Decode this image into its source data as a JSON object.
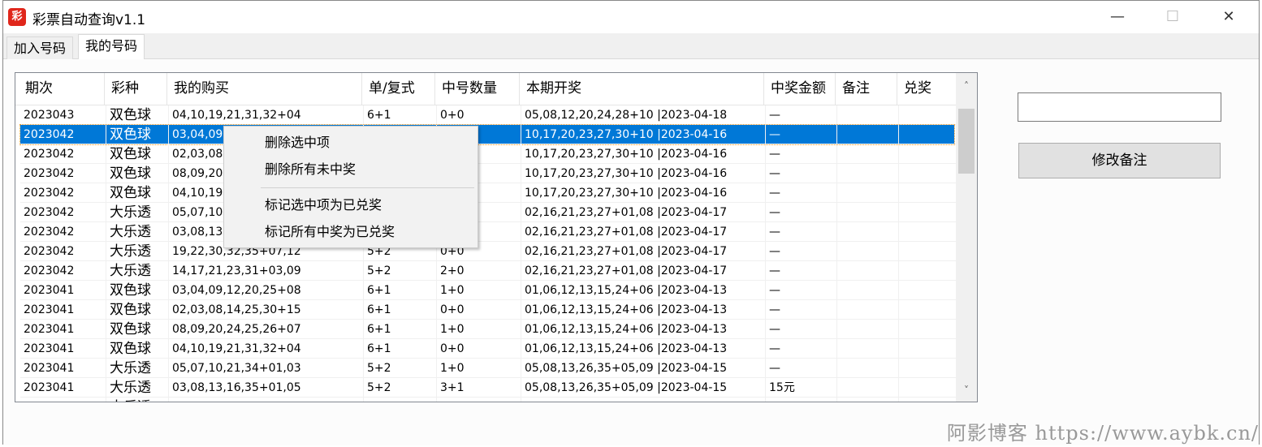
{
  "window": {
    "title": "彩票自动查询v1.1",
    "icon_text": "彩",
    "minimize": "—",
    "maximize": "☐",
    "close": "✕"
  },
  "tabs": [
    {
      "label": "加入号码"
    },
    {
      "label": "我的号码"
    }
  ],
  "table": {
    "columns": [
      "期次",
      "彩种",
      "我的购买",
      "单/复式",
      "中号数量",
      "本期开奖",
      "中奖金额",
      "备注",
      "兑奖"
    ],
    "rows": [
      [
        "2023043",
        "双色球",
        "04,10,19,21,31,32+04",
        "6+1",
        "0+0",
        "05,08,12,20,24,28+10 |2023-04-18",
        "—",
        "",
        ""
      ],
      [
        "2023042",
        "双色球",
        "03,04,09",
        "",
        "",
        "10,17,20,23,27,30+10 |2023-04-16",
        "—",
        "",
        ""
      ],
      [
        "2023042",
        "双色球",
        "02,03,08",
        "",
        "",
        "10,17,20,23,27,30+10 |2023-04-16",
        "—",
        "",
        ""
      ],
      [
        "2023042",
        "双色球",
        "08,09,20",
        "",
        "",
        "10,17,20,23,27,30+10 |2023-04-16",
        "—",
        "",
        ""
      ],
      [
        "2023042",
        "双色球",
        "04,10,19",
        "",
        "",
        "10,17,20,23,27,30+10 |2023-04-16",
        "—",
        "",
        ""
      ],
      [
        "2023042",
        "大乐透",
        "05,07,10",
        "",
        "",
        "02,16,21,23,27+01,08 |2023-04-17",
        "—",
        "",
        ""
      ],
      [
        "2023042",
        "大乐透",
        "03,08,13",
        "",
        "",
        "02,16,21,23,27+01,08 |2023-04-17",
        "—",
        "",
        ""
      ],
      [
        "2023042",
        "大乐透",
        "19,22,30,32,35+07,12",
        "5+2",
        "0+0",
        "02,16,21,23,27+01,08 |2023-04-17",
        "—",
        "",
        ""
      ],
      [
        "2023042",
        "大乐透",
        "14,17,21,23,31+03,09",
        "5+2",
        "2+0",
        "02,16,21,23,27+01,08 |2023-04-17",
        "—",
        "",
        ""
      ],
      [
        "2023041",
        "双色球",
        "03,04,09,12,20,25+08",
        "6+1",
        "1+0",
        "01,06,12,13,15,24+06 |2023-04-13",
        "—",
        "",
        ""
      ],
      [
        "2023041",
        "双色球",
        "02,03,08,14,25,30+15",
        "6+1",
        "0+0",
        "01,06,12,13,15,24+06 |2023-04-13",
        "—",
        "",
        ""
      ],
      [
        "2023041",
        "双色球",
        "08,09,20,24,25,26+07",
        "6+1",
        "1+0",
        "01,06,12,13,15,24+06 |2023-04-13",
        "—",
        "",
        ""
      ],
      [
        "2023041",
        "双色球",
        "04,10,19,21,31,32+04",
        "6+1",
        "0+0",
        "01,06,12,13,15,24+06 |2023-04-13",
        "—",
        "",
        ""
      ],
      [
        "2023041",
        "大乐透",
        "05,07,10,21,34+01,03",
        "5+2",
        "1+0",
        "05,08,13,26,35+05,09 |2023-04-15",
        "—",
        "",
        ""
      ],
      [
        "2023041",
        "大乐透",
        "03,08,13,16,35+01,05",
        "5+2",
        "3+1",
        "05,08,13,26,35+05,09 |2023-04-15",
        "15元",
        "",
        ""
      ],
      [
        "",
        "大乐透",
        "",
        "",
        "",
        "",
        "",
        "",
        ""
      ]
    ],
    "selected_row": 1
  },
  "scroll": {
    "up": "˄",
    "down": "˅"
  },
  "side": {
    "remark_input_value": "",
    "edit_remark_button": "修改备注"
  },
  "context_menu": [
    "删除选中项",
    "删除所有未中奖",
    "标记选中项为已兑奖",
    "标记所有中奖为已兑奖"
  ],
  "watermark": "阿影博客 https://www.aybk.cn/",
  "colors": {
    "selection": "#0078d7",
    "app_icon": "#e0261b"
  }
}
